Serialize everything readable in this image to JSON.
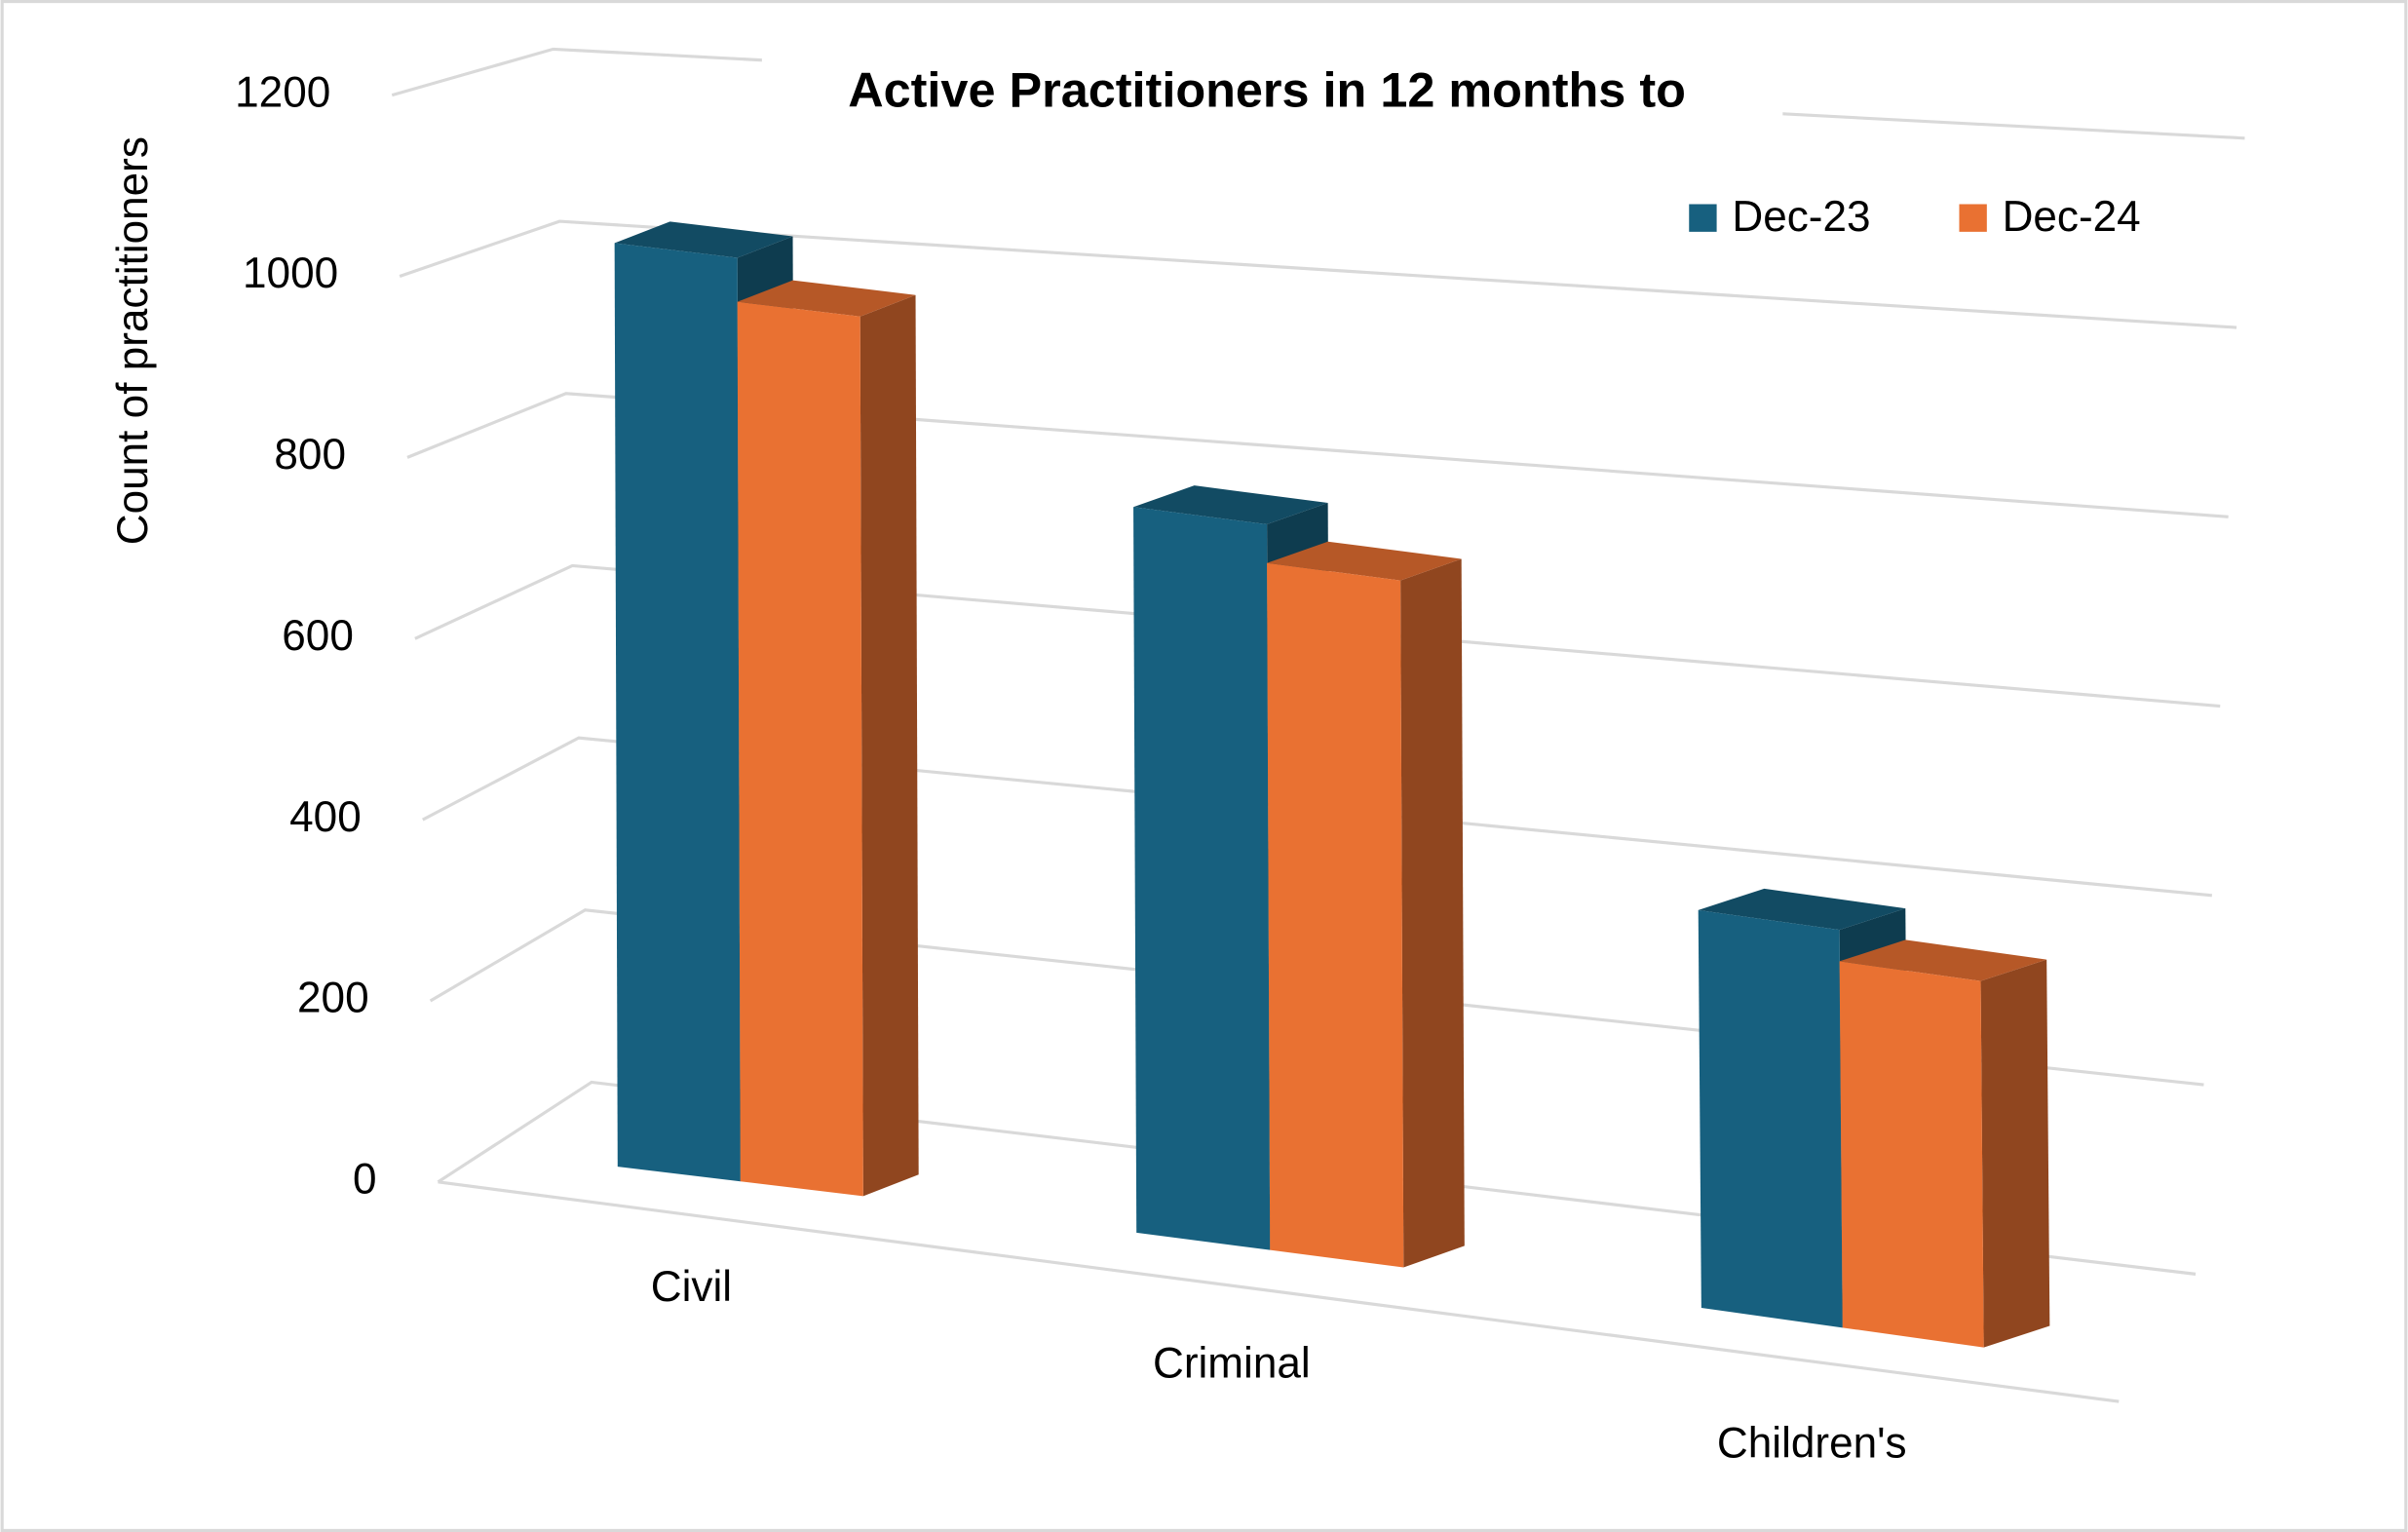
{
  "chart_data": {
    "type": "bar3d",
    "title": "Active Practitioners in 12 months to",
    "y_label": "Count of practitioners",
    "categories": [
      "Civil",
      "Criminal",
      "Children's"
    ],
    "series": [
      {
        "name": "Dec-23",
        "color": "#17607f",
        "values": [
          1050,
          750,
          380
        ]
      },
      {
        "name": "Dec-24",
        "color": "#e97132",
        "values": [
          1000,
          710,
          350
        ]
      }
    ],
    "ylim": [
      0,
      1200
    ],
    "yticks": [
      0,
      200,
      400,
      600,
      800,
      1000,
      1200
    ],
    "grid": true,
    "legend": "top-right"
  }
}
